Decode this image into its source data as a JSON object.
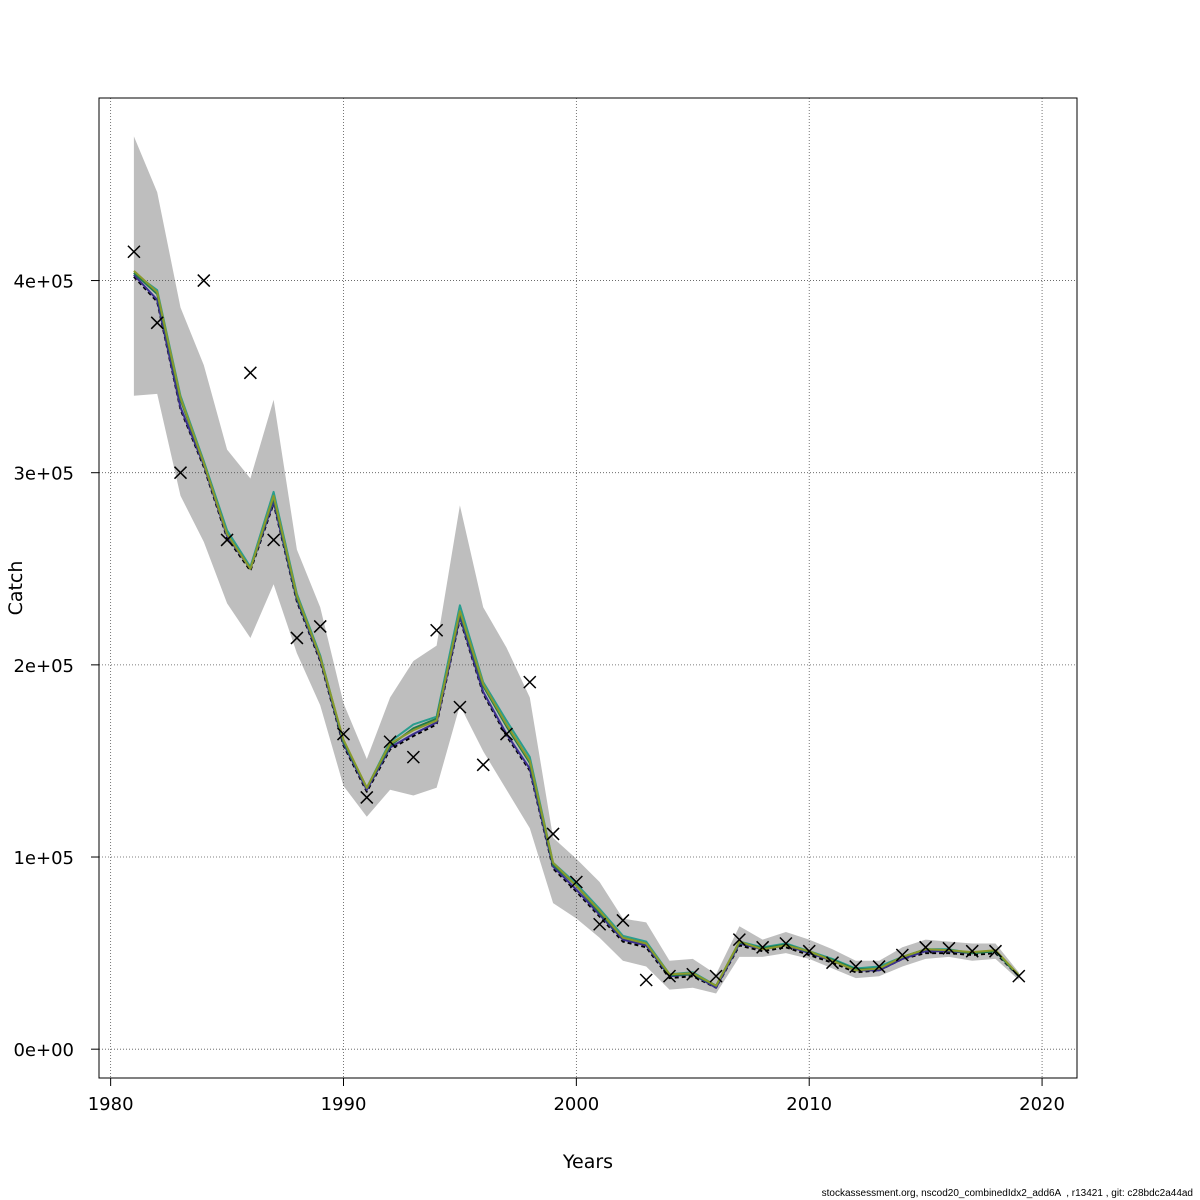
{
  "chart_data": {
    "type": "line",
    "title": "",
    "xlabel": "Years",
    "ylabel": "Catch",
    "xlim": [
      1979.5,
      2021.5
    ],
    "ylim": [
      -15000,
      495000
    ],
    "xticks": [
      1980,
      1990,
      2000,
      2010,
      2020
    ],
    "yticks": [
      0,
      100000,
      200000,
      300000,
      400000
    ],
    "ytick_labels": [
      "0e+00",
      "1e+05",
      "2e+05",
      "3e+05",
      "4e+05"
    ],
    "grid": true,
    "legend": "none",
    "years": [
      1981,
      1982,
      1983,
      1984,
      1985,
      1986,
      1987,
      1988,
      1989,
      1990,
      1991,
      1992,
      1993,
      1994,
      1995,
      1996,
      1997,
      1998,
      1999,
      2000,
      2001,
      2002,
      2003,
      2004,
      2005,
      2006,
      2007,
      2008,
      2009,
      2010,
      2011,
      2012,
      2013,
      2014,
      2015,
      2016,
      2017,
      2018,
      2019
    ],
    "band": {
      "color": "#bebebe",
      "upper": [
        475000,
        446000,
        386000,
        356000,
        312000,
        297000,
        338000,
        260000,
        230000,
        180000,
        151000,
        183000,
        202000,
        210000,
        283000,
        230000,
        209000,
        183000,
        110000,
        99000,
        87000,
        68000,
        66000,
        46000,
        47000,
        39000,
        64000,
        57000,
        61000,
        57000,
        52000,
        46000,
        46000,
        53000,
        57000,
        56000,
        55000,
        55000,
        40000
      ],
      "lower": [
        340000,
        341000,
        288000,
        264000,
        232000,
        214000,
        242000,
        206000,
        179000,
        137000,
        121000,
        135000,
        132000,
        136000,
        179000,
        155000,
        135000,
        115000,
        76000,
        68000,
        58000,
        46000,
        43000,
        31000,
        32000,
        29000,
        48000,
        48000,
        50000,
        47000,
        42000,
        37000,
        38000,
        43000,
        47000,
        48000,
        46000,
        47000,
        36000
      ]
    },
    "series": [
      {
        "color": "#000000",
        "dashed": true,
        "values": [
          402000,
          389000,
          333000,
          303000,
          266000,
          249000,
          284000,
          233000,
          202000,
          158000,
          134000,
          156000,
          163000,
          169000,
          224000,
          185000,
          163000,
          145000,
          94000,
          82000,
          69000,
          56000,
          53000,
          37000,
          38000,
          32000,
          54000,
          51000,
          53000,
          49000,
          45000,
          40000,
          41000,
          47000,
          50000,
          50000,
          49000,
          50000,
          38000
        ]
      },
      {
        "color": "#3b2f8f",
        "dashed": false,
        "values": [
          403000,
          390000,
          334000,
          304000,
          267000,
          250000,
          285000,
          234000,
          203000,
          159000,
          135000,
          157000,
          164000,
          170000,
          225000,
          186000,
          164000,
          146000,
          95000,
          83000,
          70000,
          57000,
          54000,
          38000,
          39000,
          32000,
          55000,
          52000,
          54000,
          50000,
          46000,
          41000,
          41000,
          47000,
          51000,
          51000,
          50000,
          51000,
          38000
        ]
      },
      {
        "color": "#2a9d8f",
        "dashed": false,
        "values": [
          404000,
          395000,
          340000,
          306000,
          270000,
          251000,
          290000,
          237000,
          205000,
          160000,
          136000,
          160000,
          169000,
          173000,
          231000,
          191000,
          171000,
          152000,
          97000,
          86000,
          73000,
          59000,
          56000,
          39000,
          40000,
          33000,
          56000,
          53000,
          55000,
          51000,
          47000,
          42000,
          43000,
          48000,
          52000,
          52000,
          50000,
          51000,
          38500
        ]
      },
      {
        "color": "#1f7a4c",
        "dashed": false,
        "values": [
          404000,
          393000,
          338000,
          305000,
          268000,
          250000,
          287000,
          235000,
          204000,
          160000,
          136000,
          158000,
          167000,
          172000,
          227000,
          189000,
          168000,
          149000,
          96000,
          85000,
          71000,
          58000,
          55000,
          38500,
          39000,
          33000,
          55500,
          52500,
          54500,
          50500,
          46500,
          41500,
          42000,
          48000,
          52000,
          51500,
          50000,
          51000,
          38000
        ]
      },
      {
        "color": "#8a9a2c",
        "dashed": false,
        "values": [
          405000,
          394000,
          339000,
          305000,
          268000,
          250000,
          288000,
          236000,
          204000,
          161000,
          136000,
          159000,
          166000,
          171000,
          228000,
          190000,
          169000,
          150000,
          97000,
          85000,
          72000,
          58000,
          55000,
          39000,
          39500,
          33000,
          56000,
          52000,
          54000,
          51000,
          46000,
          41000,
          42000,
          48000,
          52000,
          51500,
          50500,
          51500,
          38500
        ]
      }
    ],
    "observed": {
      "marker": "x",
      "values": [
        415000,
        378000,
        300000,
        400000,
        265000,
        352000,
        265000,
        214000,
        220000,
        164000,
        131000,
        160000,
        152000,
        218000,
        178000,
        148000,
        164000,
        191000,
        112000,
        87000,
        65000,
        67000,
        36000,
        38000,
        39000,
        38000,
        57000,
        53000,
        55000,
        51000,
        45000,
        43000,
        43000,
        49000,
        53000,
        52500,
        51000,
        51000,
        38000
      ]
    }
  },
  "footer": {
    "text": "stockassessment.org, nscod20_combinedIdx2_add6A  , r13421 , git: c28bdc2a44ad"
  }
}
